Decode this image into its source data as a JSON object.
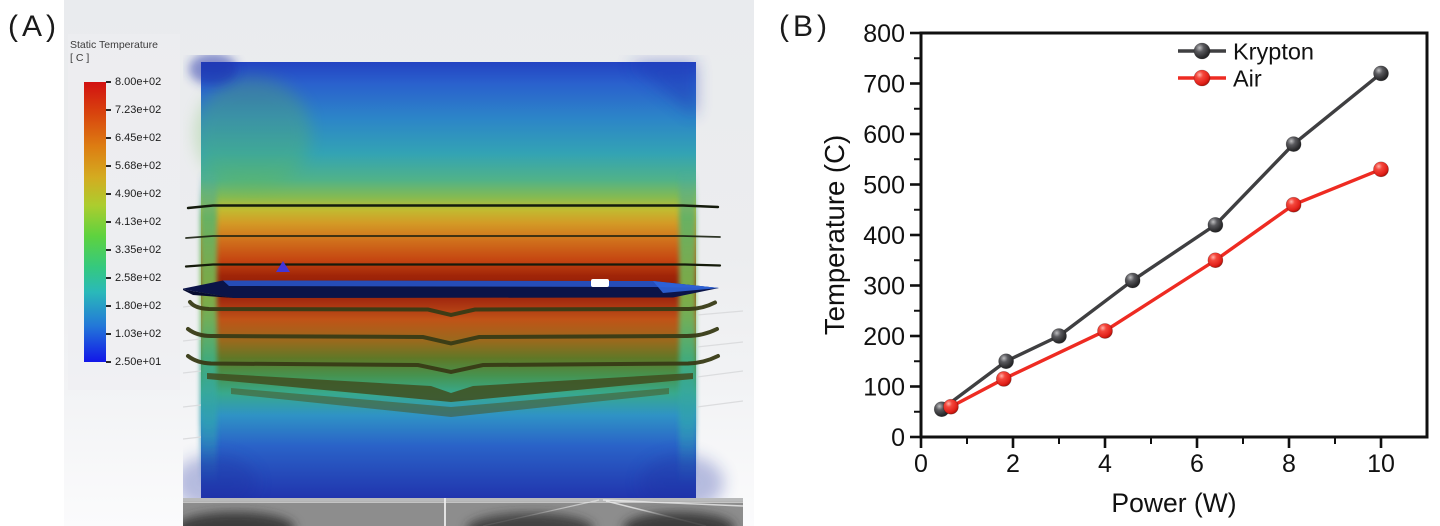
{
  "panel_a": {
    "label": "(A)",
    "legend": {
      "title": "Static Temperature",
      "units": "[ C ]",
      "tick_labels": [
        "8.00e+02",
        "7.23e+02",
        "6.45e+02",
        "5.68e+02",
        "4.90e+02",
        "4.13e+02",
        "3.35e+02",
        "2.58e+02",
        "1.80e+02",
        "1.03e+02",
        "2.50e+01"
      ],
      "colorbar_top_color": "#d21111",
      "colorbar_bottom_color": "#1216e8"
    }
  },
  "panel_b": {
    "label": "(B)"
  },
  "chart_data": {
    "type": "line",
    "title": "",
    "xlabel": "Power (W)",
    "ylabel": "Temperature (C)",
    "xlim": [
      0,
      11
    ],
    "ylim": [
      0,
      800
    ],
    "x_ticks": [
      0,
      2,
      4,
      6,
      8,
      10
    ],
    "x_minor_ticks": [
      1,
      3,
      5,
      7,
      9
    ],
    "y_ticks": [
      0,
      100,
      200,
      300,
      400,
      500,
      600,
      700,
      800
    ],
    "y_minor_step": 50,
    "grid": false,
    "legend_position": "top-right-inside",
    "series": [
      {
        "name": "Krypton",
        "color": "#3f3f41",
        "marker": "sphere",
        "x": [
          0.45,
          1.85,
          3.0,
          4.6,
          6.4,
          8.1,
          10.0
        ],
        "y": [
          55,
          150,
          200,
          310,
          420,
          580,
          720
        ]
      },
      {
        "name": "Air",
        "color": "#ee2b22",
        "marker": "sphere",
        "x": [
          0.65,
          1.8,
          4.0,
          6.4,
          8.1,
          10.0
        ],
        "y": [
          60,
          115,
          210,
          350,
          460,
          530
        ]
      }
    ]
  }
}
